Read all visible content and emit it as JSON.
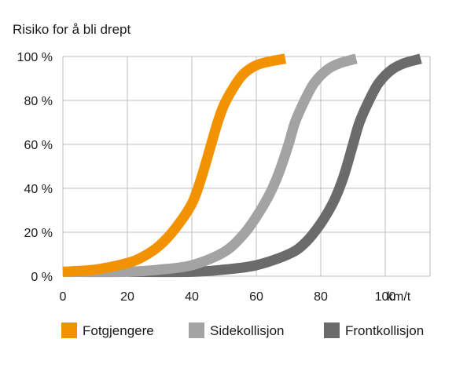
{
  "chart_data": {
    "type": "line",
    "title": "Risiko for å bli drept",
    "xlabel": "km/t",
    "ylabel": "",
    "xlim": [
      0,
      110
    ],
    "ylim": [
      0,
      100
    ],
    "x_ticks": [
      "0",
      "20",
      "40",
      "60",
      "80",
      "100"
    ],
    "y_ticks": [
      "0 %",
      "20 %",
      "40 %",
      "60 %",
      "80 %",
      "100 %"
    ],
    "grid": true,
    "legend_position": "bottom",
    "series": [
      {
        "name": "Fotgjengere",
        "color": "#f39200",
        "points": [
          [
            0,
            2
          ],
          [
            10,
            3
          ],
          [
            20,
            6
          ],
          [
            25,
            9
          ],
          [
            30,
            14
          ],
          [
            35,
            22
          ],
          [
            40,
            33
          ],
          [
            43,
            45
          ],
          [
            46,
            60
          ],
          [
            48,
            70
          ],
          [
            50,
            78
          ],
          [
            53,
            86
          ],
          [
            56,
            92
          ],
          [
            60,
            96
          ],
          [
            65,
            98
          ],
          [
            69,
            99
          ]
        ]
      },
      {
        "name": "Sidekollisjon",
        "color": "#a3a3a3",
        "points": [
          [
            0,
            2
          ],
          [
            20,
            2
          ],
          [
            30,
            3
          ],
          [
            40,
            5
          ],
          [
            50,
            11
          ],
          [
            56,
            19
          ],
          [
            60,
            27
          ],
          [
            64,
            37
          ],
          [
            67,
            47
          ],
          [
            70,
            60
          ],
          [
            72,
            70
          ],
          [
            75,
            80
          ],
          [
            78,
            88
          ],
          [
            82,
            94
          ],
          [
            86,
            97
          ],
          [
            91,
            99
          ]
        ]
      },
      {
        "name": "Frontkollisjon",
        "color": "#6b6b6b",
        "points": [
          [
            20,
            2
          ],
          [
            40,
            2
          ],
          [
            50,
            3
          ],
          [
            60,
            5
          ],
          [
            70,
            10
          ],
          [
            75,
            15
          ],
          [
            80,
            24
          ],
          [
            84,
            34
          ],
          [
            87,
            45
          ],
          [
            90,
            60
          ],
          [
            92,
            70
          ],
          [
            95,
            80
          ],
          [
            98,
            88
          ],
          [
            102,
            94
          ],
          [
            106,
            97
          ],
          [
            111,
            99
          ]
        ]
      }
    ]
  }
}
